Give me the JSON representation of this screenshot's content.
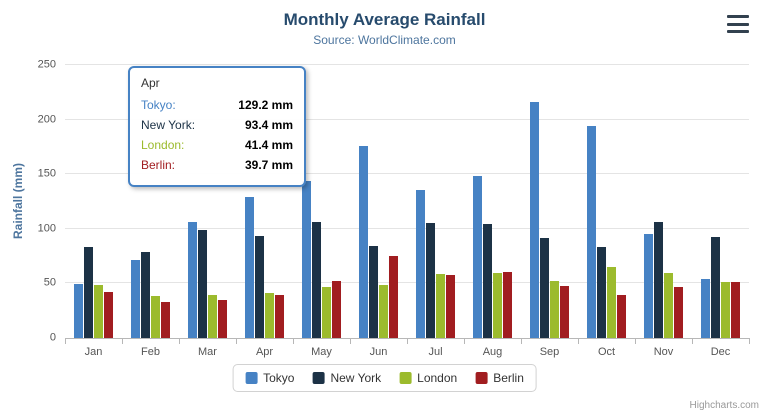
{
  "header": {
    "title": "Monthly Average Rainfall",
    "subtitle": "Source: WorldClimate.com"
  },
  "yaxis": {
    "title": "Rainfall (mm)"
  },
  "chart_data": {
    "type": "bar",
    "title": "Monthly Average Rainfall",
    "subtitle": "Source: WorldClimate.com",
    "categories": [
      "Jan",
      "Feb",
      "Mar",
      "Apr",
      "May",
      "Jun",
      "Jul",
      "Aug",
      "Sep",
      "Oct",
      "Nov",
      "Dec"
    ],
    "series": [
      {
        "name": "Tokyo",
        "color": "#4682c4",
        "values": [
          49.9,
          71.5,
          106.4,
          129.2,
          144.0,
          176.0,
          135.6,
          148.5,
          216.4,
          194.1,
          95.6,
          54.4
        ]
      },
      {
        "name": "New York",
        "color": "#1c3246",
        "values": [
          83.6,
          78.8,
          98.5,
          93.4,
          106.0,
          84.5,
          105.0,
          104.3,
          91.2,
          83.5,
          106.6,
          92.3
        ]
      },
      {
        "name": "London",
        "color": "#9cbb2d",
        "values": [
          48.9,
          38.8,
          39.3,
          41.4,
          47.0,
          48.3,
          59.0,
          59.6,
          52.4,
          65.2,
          59.3,
          51.2
        ]
      },
      {
        "name": "Berlin",
        "color": "#a11d20",
        "values": [
          42.4,
          33.2,
          34.5,
          39.7,
          52.6,
          75.5,
          57.4,
          60.4,
          47.6,
          39.1,
          46.8,
          51.1
        ]
      }
    ],
    "xlabel": "",
    "ylabel": "Rainfall (mm)",
    "ylim": [
      0,
      250
    ],
    "yticks": [
      0,
      50,
      100,
      150,
      200,
      250
    ],
    "grid": true,
    "legend_position": "bottom"
  },
  "tooltip": {
    "header": "Apr",
    "border_color": "#4682c4",
    "rows": [
      {
        "name": "Tokyo:",
        "value": "129.2 mm"
      },
      {
        "name": "New York:",
        "value": "93.4 mm"
      },
      {
        "name": "London:",
        "value": "41.4 mm"
      },
      {
        "name": "Berlin:",
        "value": "39.7 mm"
      }
    ]
  },
  "legend": {
    "items": [
      "Tokyo",
      "New York",
      "London",
      "Berlin"
    ]
  },
  "credits": "Highcharts.com"
}
